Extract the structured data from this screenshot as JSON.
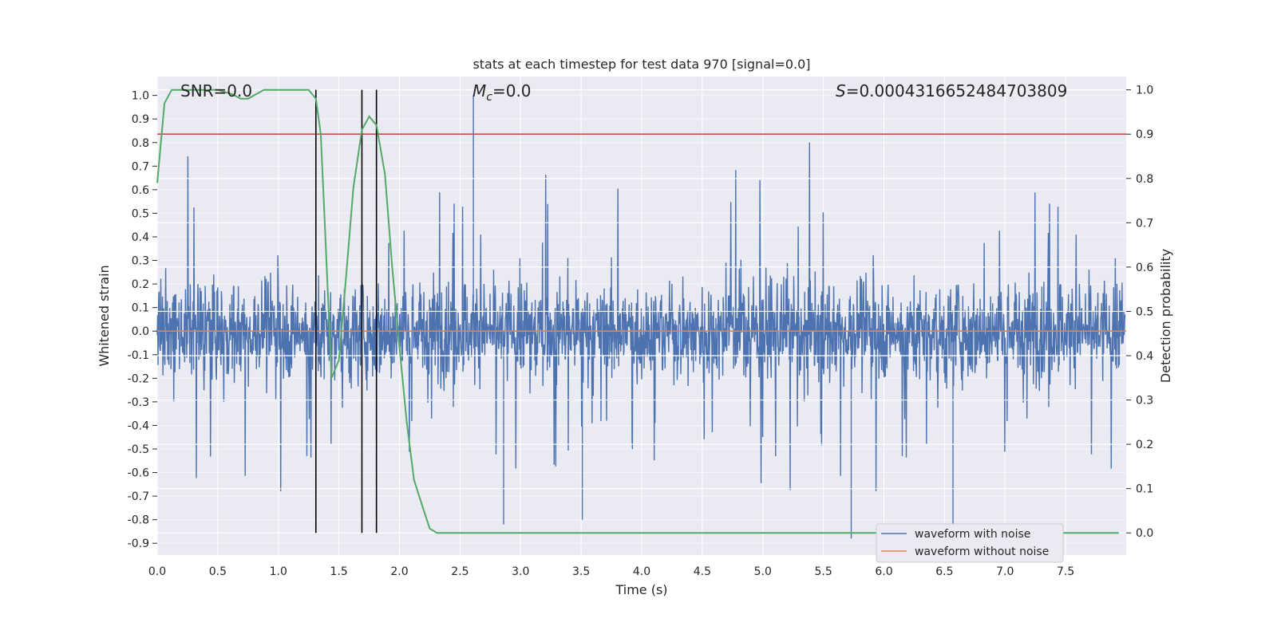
{
  "chart_data": {
    "type": "line",
    "title": "stats at each timestep for test data 970 [signal=0.0]",
    "xlabel": "Time (s)",
    "ylabel": "Whitened strain",
    "ylabel_right": "Detection probability",
    "xlim": [
      0.0,
      8.0
    ],
    "ylim": [
      -0.95,
      1.08
    ],
    "ylim_right": [
      -0.05,
      1.03
    ],
    "xticks": [
      "0.0",
      "0.5",
      "1.0",
      "1.5",
      "2.0",
      "2.5",
      "3.0",
      "3.5",
      "4.0",
      "4.5",
      "5.0",
      "5.5",
      "6.0",
      "6.5",
      "7.0",
      "7.5"
    ],
    "yticks": [
      "1.0",
      "0.9",
      "0.8",
      "0.7",
      "0.6",
      "0.5",
      "0.4",
      "0.3",
      "0.2",
      "0.1",
      "0.0",
      "-0.1",
      "-0.2",
      "-0.3",
      "-0.4",
      "-0.5",
      "-0.6",
      "-0.7",
      "-0.8",
      "-0.9"
    ],
    "yticks_right": [
      "1.0",
      "0.9",
      "0.8",
      "0.7",
      "0.6",
      "0.5",
      "0.4",
      "0.3",
      "0.2",
      "0.1",
      "0.0"
    ],
    "annotations": {
      "snr": "SNR=0.0",
      "mc": "=0.0",
      "mc_symbol": "M",
      "mc_sub": "c",
      "s": "=0.0004316652484703809",
      "s_symbol": "S"
    },
    "threshold_right": 0.9,
    "vlines_x": [
      1.31,
      1.69,
      1.81
    ],
    "noise_envelope": {
      "description_free": true,
      "typical_max": 0.35,
      "typical_min": -0.32,
      "peak_max": 1.0,
      "peak_min": -0.88
    },
    "series": [
      {
        "name": "waveform with noise",
        "color": "#4c72b0",
        "axis": "left"
      },
      {
        "name": "waveform without noise",
        "color": "#dd8452",
        "axis": "left",
        "x": [
          0.0,
          8.0
        ],
        "y": [
          0.0,
          0.0
        ]
      },
      {
        "axis": "right",
        "color": "#55a868",
        "x": [
          0.0,
          0.06,
          0.12,
          0.25,
          0.5,
          0.62,
          0.69,
          0.75,
          0.88,
          1.0,
          1.25,
          1.31,
          1.35,
          1.38,
          1.44,
          1.5,
          1.56,
          1.62,
          1.69,
          1.75,
          1.81,
          1.88,
          1.94,
          2.0,
          2.06,
          2.12,
          2.19,
          2.25,
          2.31,
          2.38,
          2.5,
          3.0,
          4.0,
          5.0,
          6.0,
          7.0,
          7.94
        ],
        "y": [
          0.79,
          0.97,
          1.0,
          1.0,
          1.0,
          0.99,
          0.98,
          0.98,
          1.0,
          1.0,
          1.0,
          0.98,
          0.9,
          0.72,
          0.35,
          0.39,
          0.58,
          0.78,
          0.91,
          0.94,
          0.92,
          0.81,
          0.6,
          0.42,
          0.25,
          0.12,
          0.06,
          0.01,
          0.0,
          0.0,
          0.0,
          0.0,
          0.0,
          0.0,
          0.0,
          0.0,
          0.0
        ]
      }
    ],
    "legend": {
      "placement": "lower-right",
      "entries": [
        "waveform with noise",
        "waveform without noise"
      ]
    },
    "colors": {
      "background": "#eaeaf2",
      "grid": "#ffffff",
      "threshold": "#c44e52",
      "vline": "#000000"
    }
  }
}
